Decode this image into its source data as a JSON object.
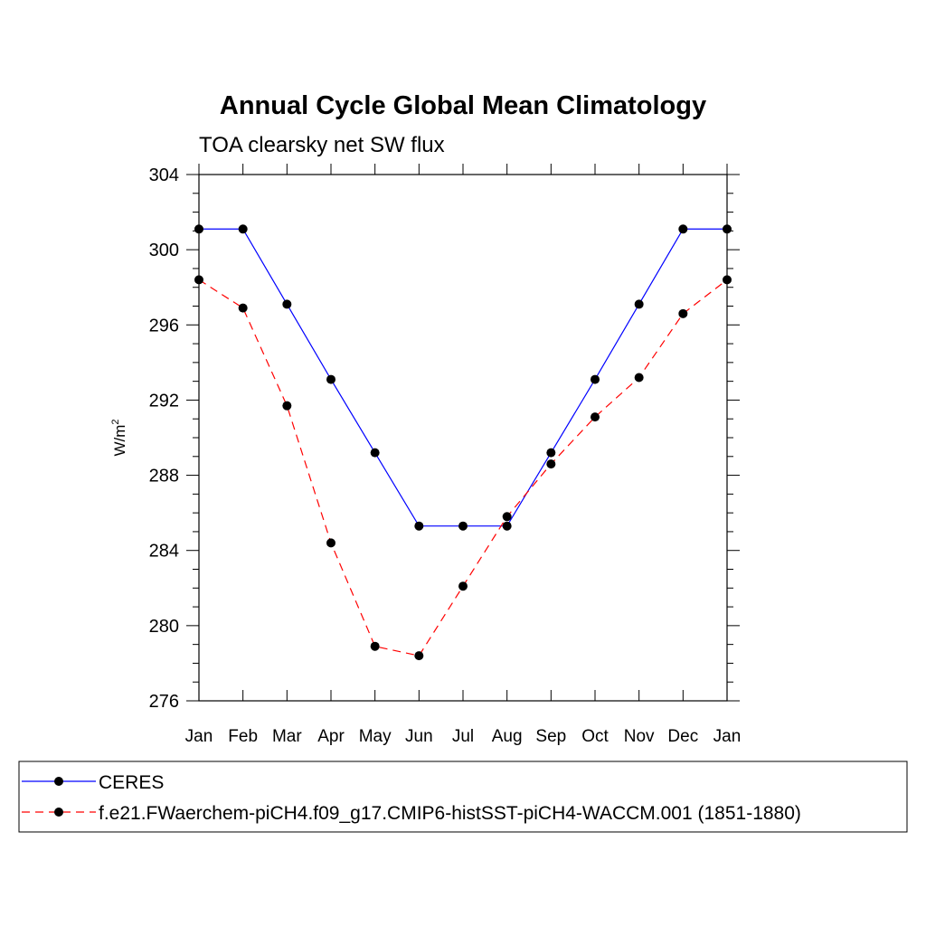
{
  "chart_data": {
    "type": "line",
    "title": "Annual Cycle Global Mean Climatology",
    "subtitle": "TOA clearsky net SW flux",
    "ylabel": "W/m",
    "ylabel_superscript": "2",
    "ylim": [
      276,
      304
    ],
    "yticks": [
      "276",
      "280",
      "284",
      "288",
      "292",
      "296",
      "300",
      "304"
    ],
    "categories": [
      "Jan",
      "Feb",
      "Mar",
      "Apr",
      "May",
      "Jun",
      "Jul",
      "Aug",
      "Sep",
      "Oct",
      "Nov",
      "Dec",
      "Jan"
    ],
    "grid": false,
    "legend_position": "bottom",
    "series": [
      {
        "name": "CERES",
        "color": "#0000ff",
        "line_style": "solid",
        "marker": "circle",
        "values": [
          301.1,
          301.1,
          297.1,
          293.1,
          289.2,
          285.3,
          285.3,
          285.3,
          289.2,
          293.1,
          297.1,
          301.1,
          301.1
        ]
      },
      {
        "name": "f.e21.FWaerchem-piCH4.f09_g17.CMIP6-histSST-piCH4-WACCM.001 (1851-1880)",
        "color": "#ff0000",
        "line_style": "dashed",
        "marker": "circle",
        "values": [
          298.4,
          296.9,
          291.7,
          284.4,
          278.9,
          278.4,
          282.1,
          285.8,
          288.6,
          291.1,
          293.2,
          296.6,
          298.4
        ]
      }
    ]
  }
}
